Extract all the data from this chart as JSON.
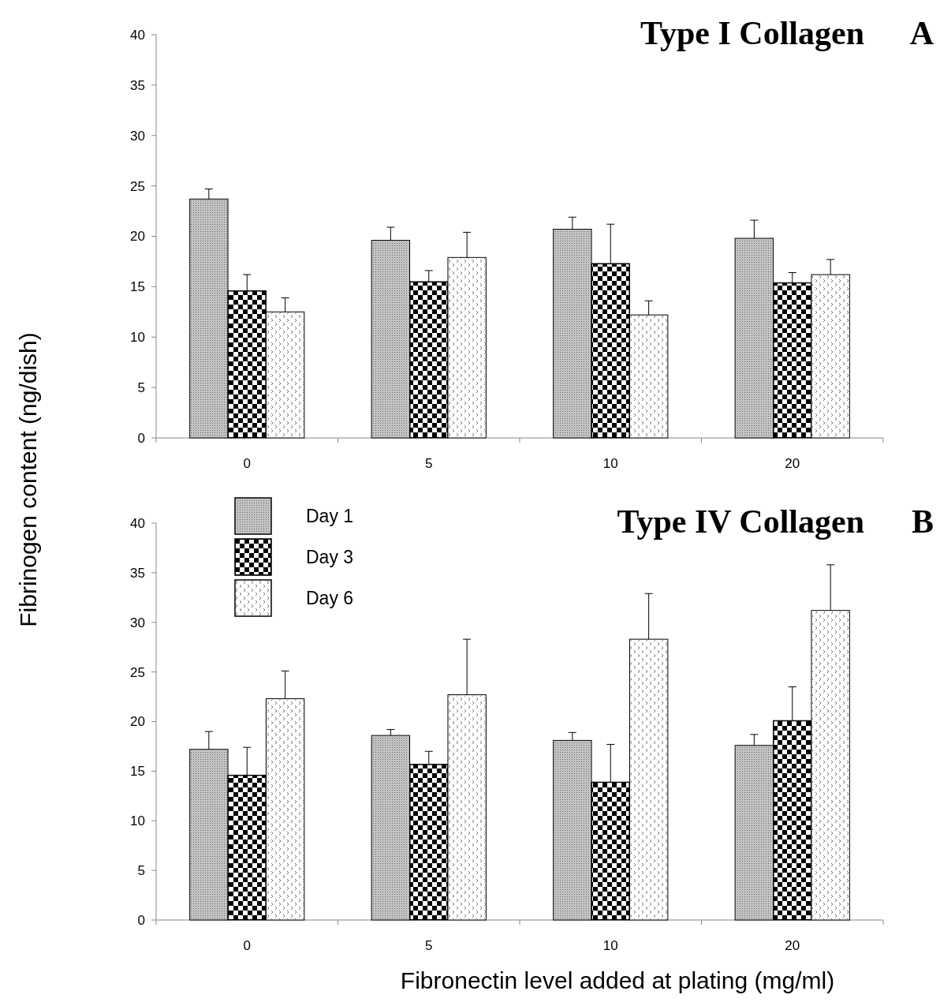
{
  "chart_data": [
    {
      "type": "bar",
      "title": "Type I Collagen",
      "annotations": [
        "A"
      ],
      "ylabel": "Fibrinogen content (ng/dish)",
      "categories": [
        "0",
        "5",
        "10",
        "20"
      ],
      "ylim": [
        0,
        40
      ],
      "yticks": [
        0,
        5,
        10,
        15,
        20,
        25,
        30,
        35,
        40
      ],
      "legend": false,
      "grid": false,
      "series": [
        {
          "color": "#c4c4c4",
          "values": [
            23.7,
            19.6,
            20.7,
            19.8
          ],
          "errors": [
            [
              23.7,
              24.7
            ],
            [
              19.6,
              20.9
            ],
            [
              20.7,
              21.9
            ],
            [
              19.8,
              21.6
            ]
          ]
        },
        {
          "color": "#000000",
          "values": [
            14.6,
            15.5,
            17.3,
            15.4
          ],
          "errors": [
            [
              14.6,
              16.2
            ],
            [
              15.5,
              16.6
            ],
            [
              17.3,
              21.2
            ],
            [
              15.4,
              16.4
            ]
          ]
        },
        {
          "color": "#ffffff",
          "values": [
            12.5,
            17.9,
            12.2,
            16.2
          ],
          "errors": [
            [
              12.5,
              13.9
            ],
            [
              17.9,
              20.4
            ],
            [
              12.2,
              13.6
            ],
            [
              16.2,
              17.7
            ]
          ]
        }
      ]
    },
    {
      "type": "bar",
      "title": "Type IV Collagen",
      "annotations": [
        "B"
      ],
      "xlabel": "Fibronectin level added at plating (mg/ml)",
      "categories": [
        "0",
        "5",
        "10",
        "20"
      ],
      "ylim": [
        0,
        40
      ],
      "yticks": [
        0,
        5,
        10,
        15,
        20,
        25,
        30,
        35,
        40
      ],
      "legend": "top left",
      "grid": false,
      "series": [
        {
          "name": "Day 1",
          "color": "#c4c4c4",
          "values": [
            17.2,
            18.6,
            18.1,
            17.6
          ],
          "errors": [
            [
              17.2,
              19.0
            ],
            [
              18.6,
              19.2
            ],
            [
              18.1,
              18.9
            ],
            [
              17.6,
              18.7
            ]
          ]
        },
        {
          "name": "Day 3",
          "color": "#000000",
          "values": [
            14.6,
            15.7,
            13.9,
            20.1
          ],
          "errors": [
            [
              14.6,
              17.4
            ],
            [
              15.7,
              17.0
            ],
            [
              13.9,
              17.7
            ],
            [
              20.1,
              23.5
            ]
          ]
        },
        {
          "name": "Day 6",
          "color": "#ffffff",
          "values": [
            22.3,
            22.7,
            28.3,
            31.2
          ],
          "errors": [
            [
              22.3,
              25.1
            ],
            [
              22.7,
              28.3
            ],
            [
              28.3,
              32.9
            ],
            [
              31.2,
              35.8
            ]
          ]
        }
      ]
    }
  ]
}
